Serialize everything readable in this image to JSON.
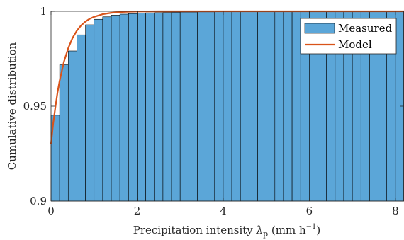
{
  "chart_data": {
    "type": "bar",
    "subtype": "cumulative-histogram-with-model-curve",
    "xlabel_text": "Precipitation intensity",
    "xlabel_symbol": "λ",
    "xlabel_subscript": "p",
    "xlabel_unit": "(mm h",
    "xlabel_unit_exp": "−1",
    "xlabel_unit_close": ")",
    "ylabel": "Cumulative distribution",
    "xlim": [
      0,
      8.2
    ],
    "ylim": [
      0.9,
      1.0
    ],
    "x_ticks": [
      0,
      2,
      4,
      6,
      8
    ],
    "x_tick_labels": [
      "0",
      "2",
      "4",
      "6",
      "8"
    ],
    "y_ticks": [
      0.9,
      0.95,
      1.0
    ],
    "y_tick_labels": [
      "0.9",
      "0.95",
      "1"
    ],
    "bin_width": 0.2,
    "grid": false,
    "legend_position": "top-right",
    "series": [
      {
        "name": "Measured",
        "kind": "bars",
        "color": "#5ba6d8",
        "bin_starts": [
          0,
          0.2,
          0.4,
          0.6,
          0.8,
          1.0,
          1.2,
          1.4,
          1.6,
          1.8,
          2.0,
          2.2,
          2.4,
          2.6,
          2.8,
          3.0,
          3.2,
          3.4,
          3.6,
          3.8,
          4.0,
          4.2,
          4.4,
          4.6,
          4.8,
          5.0,
          5.2,
          5.4,
          5.6,
          5.8,
          6.0,
          6.2,
          6.4,
          6.6,
          6.8,
          7.0,
          7.2,
          7.4,
          7.6,
          7.8,
          8.0
        ],
        "values": [
          0.9452,
          0.9718,
          0.9791,
          0.9876,
          0.9929,
          0.9958,
          0.9971,
          0.998,
          0.9985,
          0.9988,
          0.999,
          0.9992,
          0.9993,
          0.9994,
          0.9995,
          0.9996,
          0.9996,
          0.9997,
          0.9997,
          0.9998,
          0.9998,
          0.9998,
          0.9998,
          0.9998,
          0.9998,
          0.9999,
          0.9999,
          0.9999,
          0.9999,
          0.9999,
          0.9999,
          0.9999,
          0.9999,
          0.9999,
          0.9999,
          0.9999,
          0.9999,
          0.9999,
          0.9999,
          0.9999,
          0.9999
        ]
      },
      {
        "name": "Model",
        "kind": "line",
        "color": "#d95319",
        "x": [
          0,
          0.05,
          0.1,
          0.15,
          0.2,
          0.3,
          0.4,
          0.5,
          0.6,
          0.7,
          0.8,
          0.9,
          1.0,
          1.2,
          1.4,
          1.6,
          1.8,
          2.0,
          2.5,
          3.0,
          4.0,
          5.0,
          6.0,
          7.0,
          8.0,
          8.2
        ],
        "y": [
          0.9301,
          0.9409,
          0.9493,
          0.9571,
          0.9634,
          0.9734,
          0.9806,
          0.986,
          0.9898,
          0.9926,
          0.9946,
          0.9961,
          0.9971,
          0.9985,
          0.9992,
          0.9996,
          0.9998,
          0.9999,
          1.0,
          1.0,
          1.0,
          1.0,
          1.0,
          1.0,
          1.0,
          1.0
        ]
      }
    ]
  }
}
